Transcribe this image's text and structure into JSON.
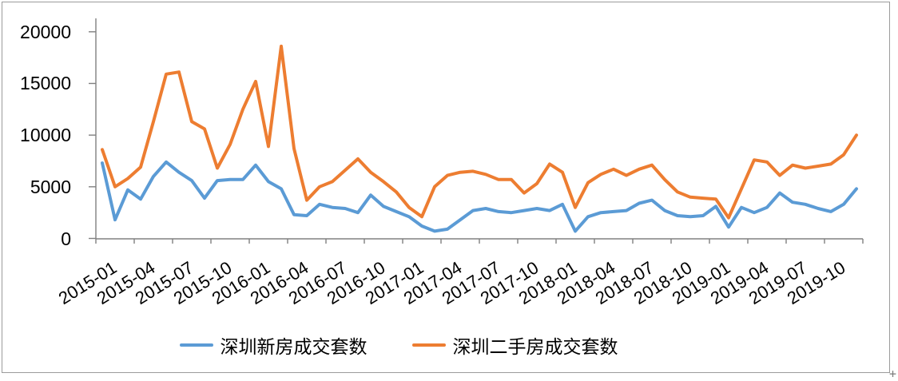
{
  "chart_data": {
    "type": "line",
    "title": "",
    "xlabel": "",
    "ylabel": "",
    "grid": false,
    "legend_position": "bottom",
    "ylim": [
      0,
      20000
    ],
    "ytick_labels": [
      "0",
      "5000",
      "10000",
      "15000",
      "20000"
    ],
    "yticks": [
      0,
      5000,
      10000,
      15000,
      20000
    ],
    "x_tick_labels": [
      "2015-01",
      "2015-04",
      "2015-07",
      "2015-10",
      "2016-01",
      "2016-04",
      "2016-07",
      "2016-10",
      "2017-01",
      "2017-04",
      "2017-07",
      "2017-10",
      "2018-01",
      "2018-04",
      "2018-07",
      "2018-10",
      "2019-01",
      "2019-04",
      "2019-07",
      "2019-10"
    ],
    "months": [
      "2015-01",
      "2015-02",
      "2015-03",
      "2015-04",
      "2015-05",
      "2015-06",
      "2015-07",
      "2015-08",
      "2015-09",
      "2015-10",
      "2015-11",
      "2015-12",
      "2016-01",
      "2016-02",
      "2016-03",
      "2016-04",
      "2016-05",
      "2016-06",
      "2016-07",
      "2016-08",
      "2016-09",
      "2016-10",
      "2016-11",
      "2016-12",
      "2017-01",
      "2017-02",
      "2017-03",
      "2017-04",
      "2017-05",
      "2017-06",
      "2017-07",
      "2017-08",
      "2017-09",
      "2017-10",
      "2017-11",
      "2017-12",
      "2018-01",
      "2018-02",
      "2018-03",
      "2018-04",
      "2018-05",
      "2018-06",
      "2018-07",
      "2018-08",
      "2018-09",
      "2018-10",
      "2018-11",
      "2018-12",
      "2019-01",
      "2019-02",
      "2019-03",
      "2019-04",
      "2019-05",
      "2019-06",
      "2019-07",
      "2019-08",
      "2019-09",
      "2019-10",
      "2019-11",
      "2019-12"
    ],
    "series": [
      {
        "name": "深圳新房成交套数",
        "color": "#5B9BD5",
        "values": [
          7300,
          1800,
          4700,
          3800,
          6000,
          7400,
          6400,
          5600,
          3900,
          5600,
          5700,
          5700,
          7100,
          5500,
          4800,
          2300,
          2200,
          3300,
          3000,
          2900,
          2500,
          4200,
          3100,
          2600,
          2100,
          1200,
          700,
          900,
          1800,
          2700,
          2900,
          2600,
          2500,
          2700,
          2900,
          2700,
          3300,
          700,
          2100,
          2500,
          2600,
          2700,
          3400,
          3700,
          2700,
          2200,
          2100,
          2200,
          3100,
          1100,
          3000,
          2500,
          3000,
          4400,
          3500,
          3300,
          2900,
          2600,
          3300,
          4800
        ]
      },
      {
        "name": "深圳二手房成交套数",
        "color": "#ED7D31",
        "values": [
          8600,
          5000,
          5800,
          6900,
          11300,
          15900,
          16100,
          11300,
          10600,
          6800,
          9100,
          12500,
          15200,
          8900,
          18600,
          8700,
          3700,
          5000,
          5500,
          6600,
          7700,
          6400,
          5500,
          4500,
          3000,
          2100,
          5000,
          6100,
          6400,
          6500,
          6200,
          5700,
          5700,
          4400,
          5300,
          7200,
          6400,
          3000,
          5400,
          6200,
          6700,
          6100,
          6700,
          7100,
          5700,
          4500,
          4000,
          3900,
          3800,
          2000,
          4800,
          7600,
          7400,
          6100,
          7100,
          6800,
          7000,
          7200,
          8100,
          10000
        ]
      }
    ],
    "axis_color": "#808080",
    "cursor_mark": "+"
  }
}
